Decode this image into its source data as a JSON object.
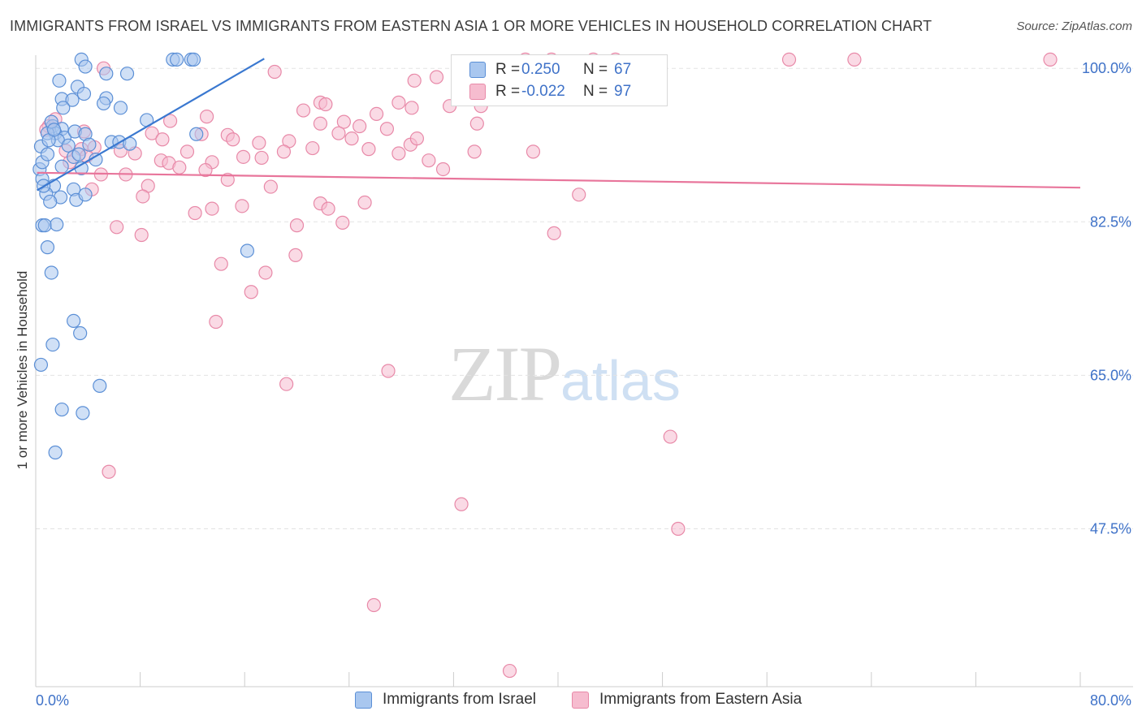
{
  "title": "IMMIGRANTS FROM ISRAEL VS IMMIGRANTS FROM EASTERN ASIA 1 OR MORE VEHICLES IN HOUSEHOLD CORRELATION CHART",
  "source": "Source: ZipAtlas.com",
  "watermark": {
    "zip": "ZIP",
    "atlas": "atlas"
  },
  "legend_top": {
    "rows": [
      {
        "r_label": "R =",
        "r_value": "0.250",
        "n_label": "N =",
        "n_value": "67"
      },
      {
        "r_label": "R =",
        "r_value": "-0.022",
        "n_label": "N =",
        "n_value": "97"
      }
    ]
  },
  "legend_bottom": {
    "items": [
      {
        "label": "Immigrants from Israel"
      },
      {
        "label": "Immigrants from Eastern Asia"
      }
    ]
  },
  "chart_data": {
    "type": "scatter",
    "title": "IMMIGRANTS FROM ISRAEL VS IMMIGRANTS FROM EASTERN ASIA 1 OR MORE VEHICLES IN HOUSEHOLD CORRELATION CHART",
    "xlabel": "",
    "ylabel": "1 or more Vehicles in Household",
    "xlim": [
      0,
      80
    ],
    "ylim": [
      29.5,
      101.5
    ],
    "x_tick_labels": [
      "0.0%",
      "80.0%"
    ],
    "y_ticks": [
      100.0,
      82.5,
      65.0,
      47.5
    ],
    "y_tick_labels": [
      "100.0%",
      "82.5%",
      "65.0%",
      "47.5%"
    ],
    "grid": true,
    "colors": {
      "israel_fill": "#a9c7ef",
      "israel_stroke": "#5b8fd6",
      "israel_line": "#3a78d0",
      "easia_fill": "#f6bccf",
      "easia_stroke": "#e889a8",
      "easia_line": "#e8759b",
      "tick_label": "#3f72c8",
      "grid": "#e3e3e3",
      "axis": "#cccccc"
    },
    "series": [
      {
        "name": "Immigrants from Israel",
        "R": 0.25,
        "N": 67,
        "trendline": {
          "x": [
            0.1,
            17.5
          ],
          "y": [
            86.1,
            101.1
          ]
        },
        "points": [
          [
            3.5,
            101
          ],
          [
            3.8,
            100.2
          ],
          [
            10.5,
            101
          ],
          [
            10.8,
            101
          ],
          [
            11.9,
            101
          ],
          [
            12.1,
            101
          ],
          [
            5.4,
            99.4
          ],
          [
            7.0,
            99.4
          ],
          [
            1.8,
            98.6
          ],
          [
            3.2,
            97.9
          ],
          [
            3.7,
            97.1
          ],
          [
            2.0,
            96.5
          ],
          [
            2.8,
            96.4
          ],
          [
            5.4,
            96.6
          ],
          [
            5.2,
            96.0
          ],
          [
            2.1,
            95.5
          ],
          [
            6.5,
            95.5
          ],
          [
            1.3,
            93.4
          ],
          [
            2.0,
            93.1
          ],
          [
            1.5,
            92.6
          ],
          [
            2.2,
            92.1
          ],
          [
            3.0,
            92.8
          ],
          [
            0.9,
            92.6
          ],
          [
            3.8,
            92.5
          ],
          [
            1.7,
            91.8
          ],
          [
            2.5,
            91.2
          ],
          [
            4.1,
            91.3
          ],
          [
            5.8,
            91.6
          ],
          [
            6.4,
            91.6
          ],
          [
            7.2,
            91.4
          ],
          [
            8.5,
            94.1
          ],
          [
            12.3,
            92.5
          ],
          [
            0.4,
            91.1
          ],
          [
            1.0,
            91.8
          ],
          [
            2.9,
            89.9
          ],
          [
            4.6,
            89.6
          ],
          [
            0.3,
            88.5
          ],
          [
            2.0,
            88.8
          ],
          [
            3.5,
            88.6
          ],
          [
            0.5,
            87.4
          ],
          [
            1.4,
            86.6
          ],
          [
            2.9,
            86.2
          ],
          [
            0.8,
            85.7
          ],
          [
            1.9,
            85.3
          ],
          [
            3.1,
            85.0
          ],
          [
            3.8,
            85.6
          ],
          [
            1.1,
            84.8
          ],
          [
            0.5,
            82.1
          ],
          [
            0.7,
            82.1
          ],
          [
            1.6,
            82.2
          ],
          [
            0.9,
            79.6
          ],
          [
            16.2,
            79.2
          ],
          [
            1.2,
            76.7
          ],
          [
            2.9,
            71.2
          ],
          [
            3.4,
            69.8
          ],
          [
            1.3,
            68.5
          ],
          [
            0.4,
            66.2
          ],
          [
            4.9,
            63.8
          ],
          [
            2.0,
            61.1
          ],
          [
            3.6,
            60.7
          ],
          [
            1.5,
            56.2
          ],
          [
            0.5,
            89.3
          ],
          [
            0.9,
            90.2
          ],
          [
            1.2,
            93.9
          ],
          [
            1.4,
            93.0
          ],
          [
            3.3,
            90.2
          ],
          [
            0.6,
            86.6
          ]
        ]
      },
      {
        "name": "Immigrants from Eastern Asia",
        "R": -0.022,
        "N": 97,
        "trendline": {
          "x": [
            0.1,
            80.0
          ],
          "y": [
            88.1,
            86.4
          ]
        },
        "points": [
          [
            5.2,
            100
          ],
          [
            37.5,
            101
          ],
          [
            39.5,
            101
          ],
          [
            42.7,
            101
          ],
          [
            44.4,
            101
          ],
          [
            57.7,
            101
          ],
          [
            62.7,
            101
          ],
          [
            77.7,
            101
          ],
          [
            18.3,
            99.6
          ],
          [
            30.7,
            99
          ],
          [
            29.0,
            98.6
          ],
          [
            33.4,
            96.7
          ],
          [
            21.8,
            96.1
          ],
          [
            22.2,
            95.9
          ],
          [
            27.8,
            96.1
          ],
          [
            28.8,
            95.5
          ],
          [
            31.7,
            95.7
          ],
          [
            34.1,
            95.7
          ],
          [
            13.1,
            94.5
          ],
          [
            10.3,
            94.0
          ],
          [
            20.5,
            95.2
          ],
          [
            23.6,
            93.9
          ],
          [
            21.8,
            93.7
          ],
          [
            26.1,
            94.8
          ],
          [
            26.9,
            93.1
          ],
          [
            33.8,
            93.7
          ],
          [
            1.0,
            93.4
          ],
          [
            3.7,
            92.8
          ],
          [
            8.9,
            92.6
          ],
          [
            12.7,
            92.5
          ],
          [
            14.7,
            92.4
          ],
          [
            9.7,
            91.9
          ],
          [
            15.1,
            91.9
          ],
          [
            17.1,
            91.5
          ],
          [
            19.4,
            91.7
          ],
          [
            24.2,
            92.0
          ],
          [
            24.8,
            93.4
          ],
          [
            4.5,
            91.0
          ],
          [
            3.5,
            90.8
          ],
          [
            6.5,
            90.6
          ],
          [
            7.6,
            90.3
          ],
          [
            9.6,
            89.5
          ],
          [
            10.2,
            89.2
          ],
          [
            11.6,
            90.5
          ],
          [
            13.5,
            89.3
          ],
          [
            15.9,
            89.9
          ],
          [
            17.3,
            89.8
          ],
          [
            19.0,
            90.5
          ],
          [
            21.2,
            90.9
          ],
          [
            25.5,
            90.8
          ],
          [
            27.8,
            90.3
          ],
          [
            28.7,
            91.3
          ],
          [
            33.6,
            90.5
          ],
          [
            38.1,
            90.5
          ],
          [
            30.1,
            89.5
          ],
          [
            11.0,
            88.7
          ],
          [
            13.0,
            88.4
          ],
          [
            14.7,
            87.3
          ],
          [
            18.0,
            86.5
          ],
          [
            5.0,
            87.9
          ],
          [
            6.9,
            87.9
          ],
          [
            8.6,
            86.6
          ],
          [
            4.3,
            86.2
          ],
          [
            8.2,
            85.4
          ],
          [
            21.8,
            84.6
          ],
          [
            15.8,
            84.3
          ],
          [
            25.2,
            84.7
          ],
          [
            22.4,
            84.0
          ],
          [
            12.2,
            83.5
          ],
          [
            13.5,
            84.0
          ],
          [
            23.5,
            82.4
          ],
          [
            20.0,
            82.1
          ],
          [
            6.2,
            81.9
          ],
          [
            39.7,
            81.2
          ],
          [
            8.1,
            81.0
          ],
          [
            19.9,
            78.7
          ],
          [
            14.2,
            77.7
          ],
          [
            17.6,
            76.7
          ],
          [
            16.5,
            74.5
          ],
          [
            13.8,
            71.1
          ],
          [
            27.0,
            65.5
          ],
          [
            19.2,
            64.0
          ],
          [
            48.6,
            58.0
          ],
          [
            5.6,
            54.0
          ],
          [
            32.6,
            50.3
          ],
          [
            49.2,
            47.5
          ],
          [
            25.9,
            38.8
          ],
          [
            36.3,
            31.3
          ],
          [
            23.2,
            92.6
          ],
          [
            29.2,
            92.0
          ],
          [
            31.2,
            88.5
          ],
          [
            41.6,
            85.6
          ],
          [
            2.6,
            89.3
          ],
          [
            1.5,
            94.2
          ],
          [
            0.8,
            93.0
          ],
          [
            2.3,
            90.6
          ],
          [
            3.9,
            90.0
          ]
        ]
      }
    ]
  }
}
